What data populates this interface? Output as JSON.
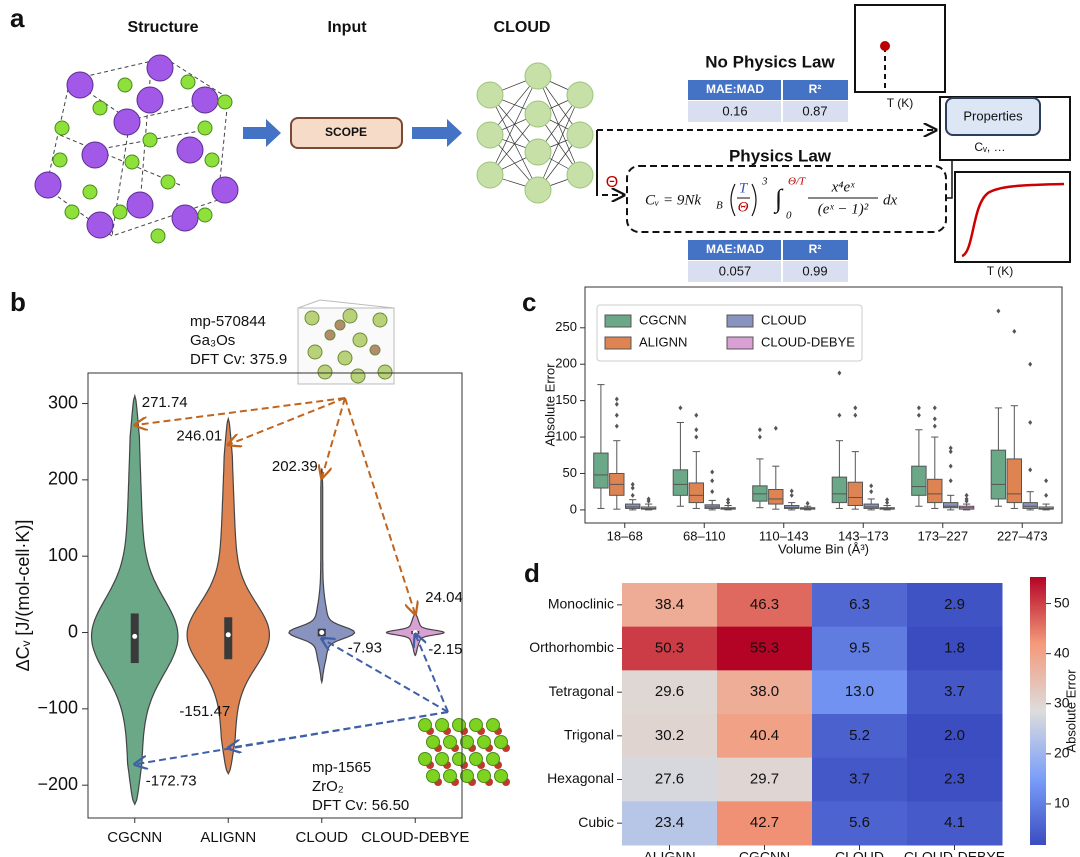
{
  "panel_a": {
    "label": "a",
    "structure": "Structure",
    "input": "Input",
    "model": "CLOUD",
    "input_box": "SCOPE",
    "no_physics_law": {
      "title": "No Physics Law",
      "header": [
        "MAE:MAD",
        "R²"
      ],
      "row": [
        0.16,
        0.87
      ]
    },
    "physics_law": {
      "title": "Physics Law",
      "header": [
        "MAE:MAD",
        "R²"
      ],
      "row": [
        0.057,
        0.99
      ],
      "formula": {
        "lhs": "Cᵥ = 9Nk",
        "lhs_sub": "B",
        "frac_num": "T",
        "frac_den": "Θ",
        "power": "3",
        "integral": "∫",
        "lower": "0",
        "upper": "Θ/T",
        "num": "x⁴eˣ",
        "den": "(eˣ − 1)²",
        "dx": "dx"
      }
    },
    "theta": "Θ",
    "properties": "Properties",
    "properties_sub": "Cᵥ, …",
    "plot_xlabel": "T (K)"
  },
  "chart_data": [
    {
      "type": "violin",
      "panel_label": "b",
      "ylabel": "ΔCᵥ [J/(mol-cell·K)]",
      "categories": [
        "CGCNN",
        "ALIGNN",
        "CLOUD",
        "CLOUD-DEBYE"
      ],
      "colors": [
        "#6aa888",
        "#dd8452",
        "#8893bf",
        "#d9a0d3"
      ],
      "ylim": [
        -243,
        340
      ],
      "yticks": [
        {
          "value": -200,
          "label": "−200"
        },
        {
          "value": -100,
          "label": "−100"
        },
        0,
        100,
        200,
        300
      ],
      "stats": {
        "min": [
          -225,
          -185,
          -65,
          -30
        ],
        "q1": [
          -40,
          -35,
          -5,
          -2
        ],
        "median": [
          -5,
          -3,
          0,
          0
        ],
        "q3": [
          25,
          20,
          5,
          2
        ],
        "max": [
          310,
          280,
          215,
          25
        ]
      },
      "materials": [
        {
          "id": "mp-570844",
          "formula": "Ga₃Os",
          "dft": "DFT Cv: 375.9",
          "values": [
            271.74,
            246.01,
            202.39,
            24.04
          ]
        },
        {
          "id": "mp-1565",
          "formula": "ZrO₂",
          "dft": "DFT Cv: 56.50",
          "values": [
            -172.73,
            -151.47,
            -7.93,
            -2.15
          ]
        }
      ]
    },
    {
      "type": "box",
      "panel_label": "c",
      "xlabel": "Volume Bin (Å³)",
      "ylabel": "Absolute Error",
      "categories": [
        "18–68",
        "68–110",
        "110–143",
        "143–173",
        "173–227",
        "227–473"
      ],
      "ylim": [
        -18,
        306
      ],
      "yticks": [
        0,
        50,
        100,
        150,
        200,
        250
      ],
      "legend": "upper left",
      "series": [
        {
          "name": "CGCNN",
          "color": "#6aa888",
          "low": [
            2,
            5,
            3,
            2,
            5,
            5
          ],
          "q1": [
            30,
            20,
            12,
            10,
            20,
            15
          ],
          "median": [
            48,
            35,
            22,
            22,
            32,
            35
          ],
          "q3": [
            78,
            55,
            33,
            45,
            60,
            82
          ],
          "high": [
            172,
            120,
            70,
            95,
            110,
            140
          ],
          "outliers": [
            [],
            [
              140
            ],
            [
              100,
              110
            ],
            [
              130,
              188
            ],
            [
              130,
              140
            ],
            [
              273
            ]
          ]
        },
        {
          "name": "ALIGNN",
          "color": "#dd8452",
          "low": [
            1,
            2,
            1,
            1,
            2,
            2
          ],
          "q1": [
            20,
            10,
            8,
            6,
            10,
            10
          ],
          "median": [
            35,
            20,
            15,
            17,
            22,
            22
          ],
          "q3": [
            50,
            37,
            28,
            38,
            42,
            70
          ],
          "high": [
            95,
            80,
            60,
            80,
            100,
            143
          ],
          "outliers": [
            [
              115,
              130,
              145,
              152
            ],
            [
              100,
              110,
              130
            ],
            [
              112
            ],
            [
              130,
              140
            ],
            [
              115,
              125,
              140
            ],
            [
              245
            ]
          ]
        },
        {
          "name": "CLOUD",
          "color": "#8893bf",
          "low": [
            0,
            0,
            0,
            0,
            0,
            0
          ],
          "q1": [
            2,
            2,
            2,
            2,
            3,
            2
          ],
          "median": [
            4,
            4,
            3,
            4,
            5,
            5
          ],
          "q3": [
            8,
            7,
            6,
            8,
            10,
            10
          ],
          "high": [
            14,
            13,
            10,
            15,
            20,
            25
          ],
          "outliers": [
            [
              20,
              30,
              35
            ],
            [
              25,
              40,
              52
            ],
            [
              20,
              26
            ],
            [
              25,
              33
            ],
            [
              40,
              60,
              80,
              85
            ],
            [
              55,
              120,
              200
            ]
          ]
        },
        {
          "name": "CLOUD-DEBYE",
          "color": "#d9a0d3",
          "low": [
            0,
            0,
            0,
            0,
            0,
            0
          ],
          "q1": [
            1,
            1,
            1,
            1,
            1,
            1
          ],
          "median": [
            2,
            2,
            2,
            2,
            3,
            2
          ],
          "q3": [
            4,
            3,
            3,
            3,
            5,
            4
          ],
          "high": [
            8,
            6,
            5,
            6,
            8,
            8
          ],
          "outliers": [
            [
              12,
              15
            ],
            [
              10,
              14
            ],
            [
              9
            ],
            [
              10,
              14
            ],
            [
              12,
              15,
              20
            ],
            [
              20,
              40
            ]
          ]
        }
      ]
    },
    {
      "type": "heatmap",
      "panel_label": "d",
      "colormap": "coolwarm",
      "colorbar_label": "Absolute Error",
      "rows": [
        "Monoclinic",
        "Orthorhombic",
        "Tetragonal",
        "Trigonal",
        "Hexagonal",
        "Cubic"
      ],
      "columns": [
        "ALIGNN",
        "CGCNN",
        "CLOUD",
        "CLOUD-DEBYE"
      ],
      "values": [
        [
          38.4,
          46.3,
          6.3,
          2.9
        ],
        [
          50.3,
          55.3,
          9.5,
          1.8
        ],
        [
          29.6,
          38.0,
          13.0,
          3.7
        ],
        [
          30.2,
          40.4,
          5.2,
          2.0
        ],
        [
          27.6,
          29.7,
          3.7,
          2.3
        ],
        [
          23.4,
          42.7,
          5.6,
          4.1
        ]
      ],
      "value_labels": [
        [
          "38.4",
          "46.3",
          "6.3",
          "2.9"
        ],
        [
          "50.3",
          "55.3",
          "9.5",
          "1.8"
        ],
        [
          "29.6",
          "38.0",
          "13.0",
          "3.7"
        ],
        [
          "30.2",
          "40.4",
          "5.2",
          "2.0"
        ],
        [
          "27.6",
          "29.7",
          "3.7",
          "2.3"
        ],
        [
          "23.4",
          "42.7",
          "5.6",
          "4.1"
        ]
      ],
      "clim": [
        1.8,
        55.3
      ],
      "colorbar_ticks": [
        10,
        20,
        30,
        40,
        50
      ]
    }
  ]
}
